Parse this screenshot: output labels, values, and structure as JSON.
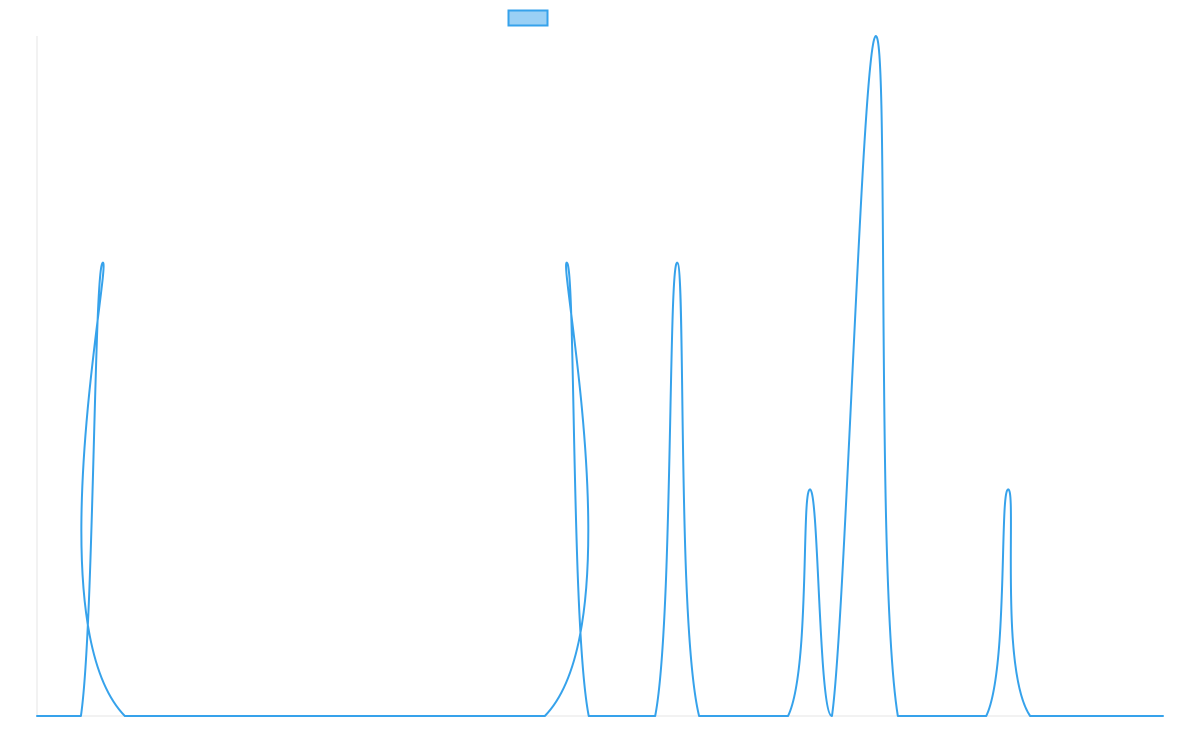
{
  "chart_data": {
    "type": "line",
    "title": "",
    "xlabel": "",
    "ylabel": "",
    "x_range": [
      0,
      100
    ],
    "y_range": [
      0,
      3
    ],
    "grid": false,
    "legend": {
      "placement": "top-center",
      "entries": [
        {
          "label": ""
        }
      ]
    },
    "series": [
      {
        "type": "line",
        "color": "#36a2eb",
        "fill": "#9ad0f5",
        "values": [
          {
            "x": 0,
            "y": 0
          },
          {
            "x": 3.9,
            "y": 0
          },
          {
            "x": 5.85,
            "y": 2
          },
          {
            "x": 7.8,
            "y": 0
          },
          {
            "x": 45.1,
            "y": 0
          },
          {
            "x": 47.05,
            "y": 2
          },
          {
            "x": 49.0,
            "y": 0
          },
          {
            "x": 54.9,
            "y": 0
          },
          {
            "x": 56.85,
            "y": 2
          },
          {
            "x": 58.8,
            "y": 0
          },
          {
            "x": 66.7,
            "y": 0
          },
          {
            "x": 68.65,
            "y": 1
          },
          {
            "x": 70.6,
            "y": 0
          },
          {
            "x": 74.5,
            "y": 3
          },
          {
            "x": 76.45,
            "y": 0
          },
          {
            "x": 84.3,
            "y": 0
          },
          {
            "x": 86.25,
            "y": 1
          },
          {
            "x": 88.2,
            "y": 0
          },
          {
            "x": 100,
            "y": 0
          }
        ]
      }
    ]
  }
}
